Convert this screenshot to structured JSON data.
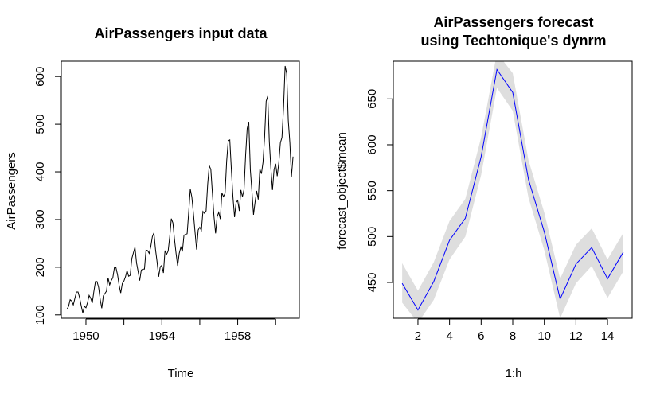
{
  "chart_data": [
    {
      "type": "line",
      "title": "AirPassengers input data",
      "xlabel": "Time",
      "ylabel": "AirPassengers",
      "xlim": [
        1948.7,
        1961.25
      ],
      "ylim": [
        93,
        632
      ],
      "x_ticks": [
        1950,
        1954,
        1958
      ],
      "x_minor_ticks": [
        1950,
        1952,
        1954,
        1956,
        1958,
        1960
      ],
      "y_ticks": [
        100,
        200,
        300,
        400,
        500,
        600
      ],
      "line_color": "#000000",
      "x_start": 1949,
      "x_step": 0.08333333,
      "values": [
        112,
        118,
        132,
        129,
        121,
        135,
        148,
        148,
        136,
        119,
        104,
        118,
        115,
        126,
        141,
        135,
        125,
        149,
        170,
        170,
        158,
        133,
        114,
        140,
        145,
        150,
        178,
        163,
        172,
        178,
        199,
        199,
        184,
        162,
        146,
        166,
        171,
        180,
        193,
        181,
        183,
        218,
        230,
        242,
        209,
        191,
        172,
        194,
        196,
        196,
        236,
        235,
        229,
        243,
        264,
        272,
        237,
        211,
        180,
        201,
        204,
        188,
        235,
        227,
        234,
        264,
        302,
        293,
        259,
        229,
        203,
        229,
        242,
        233,
        267,
        269,
        270,
        315,
        364,
        347,
        312,
        274,
        237,
        278,
        284,
        277,
        317,
        313,
        318,
        374,
        413,
        405,
        355,
        306,
        271,
        306,
        315,
        301,
        356,
        348,
        355,
        422,
        465,
        467,
        404,
        347,
        305,
        336,
        340,
        318,
        362,
        348,
        363,
        435,
        491,
        505,
        404,
        359,
        310,
        337,
        360,
        342,
        406,
        396,
        420,
        472,
        548,
        559,
        463,
        407,
        362,
        405,
        417,
        391,
        419,
        461,
        472,
        535,
        622,
        606,
        508,
        461,
        390,
        432
      ]
    },
    {
      "type": "line",
      "title": "AirPassengers forecast\nusing Techtonique's dynrm",
      "title_lines": [
        "AirPassengers forecast",
        "using Techtonique's dynrm"
      ],
      "xlabel": "1:h",
      "ylabel": "forecast_object$mean",
      "xlim": [
        0.44,
        15.56
      ],
      "ylim": [
        411,
        691
      ],
      "x_ticks": [
        2,
        4,
        6,
        8,
        10,
        12,
        14
      ],
      "y_ticks": [
        450,
        500,
        550,
        600,
        650
      ],
      "line_color": "#0000ff",
      "band_color": "#dedede",
      "x": [
        1,
        2,
        3,
        4,
        5,
        6,
        7,
        8,
        9,
        10,
        11,
        12,
        13,
        14,
        15
      ],
      "mean": [
        449,
        420,
        451,
        496,
        520,
        587,
        682,
        657,
        562,
        505,
        432,
        470,
        488,
        454,
        483
      ],
      "lower": [
        428,
        406,
        431,
        475,
        500,
        567,
        662,
        637,
        542,
        485,
        411,
        449,
        468,
        433,
        462
      ],
      "upper": [
        471,
        441,
        472,
        517,
        541,
        608,
        700,
        678,
        583,
        526,
        454,
        491,
        509,
        475,
        504
      ]
    }
  ]
}
